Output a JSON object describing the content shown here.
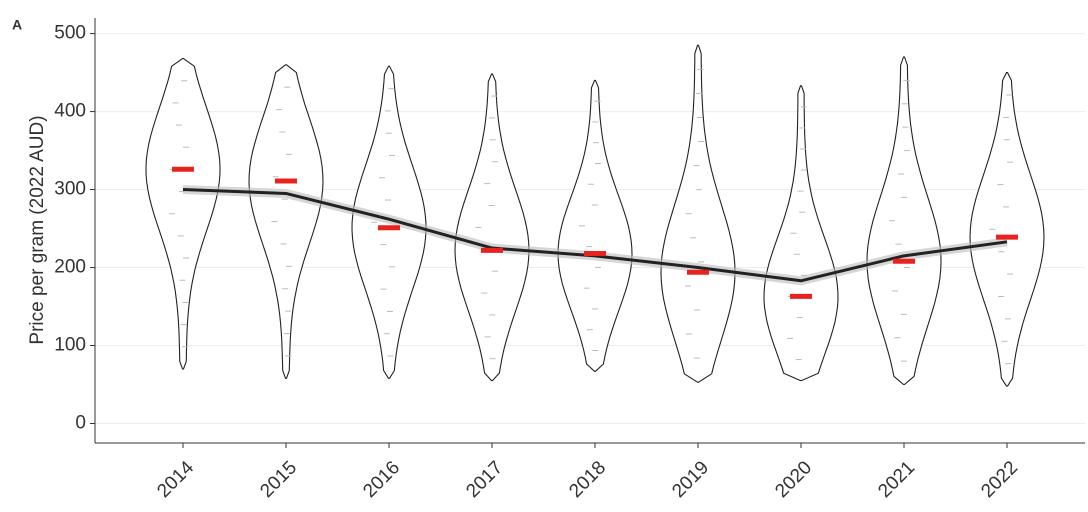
{
  "chart_data": {
    "type": "violin",
    "panel_label": "A",
    "y_label": "Price per gram (2022 AUD)",
    "categories": [
      "2014",
      "2015",
      "2016",
      "2017",
      "2018",
      "2019",
      "2020",
      "2021",
      "2022"
    ],
    "max": [
      468,
      460,
      458,
      448,
      440,
      485,
      433,
      470,
      450
    ],
    "min": [
      70,
      58,
      58,
      55,
      67,
      53,
      55,
      50,
      48
    ],
    "median": [
      326,
      311,
      251,
      222,
      218,
      194,
      163,
      208,
      239
    ],
    "trend": [
      300,
      295,
      262,
      225,
      215,
      200,
      183,
      215,
      233
    ],
    "median_color": "#e8231f",
    "trend_color": "#222222",
    "ylim": [
      -25,
      520
    ],
    "yticks": [
      0,
      100,
      200,
      300,
      400,
      500
    ],
    "grid": true
  }
}
